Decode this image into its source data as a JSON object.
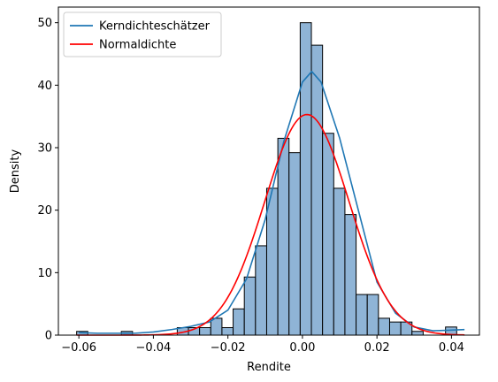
{
  "chart_data": {
    "type": "bar",
    "xlabel": "Rendite",
    "ylabel": "Density",
    "xlim": [
      -0.0655,
      0.0475
    ],
    "ylim": [
      0,
      52.5
    ],
    "xticks": [
      -0.06,
      -0.04,
      -0.02,
      0.0,
      0.02,
      0.04
    ],
    "xtick_labels": [
      "−0.06",
      "−0.04",
      "−0.02",
      "0.00",
      "0.02",
      "0.04"
    ],
    "yticks": [
      0,
      10,
      20,
      30,
      40,
      50
    ],
    "ytick_labels": [
      "0",
      "10",
      "20",
      "30",
      "40",
      "50"
    ],
    "grid": false,
    "legend": {
      "placement": "top-left",
      "entries": [
        {
          "label": "Kerndichteschätzer",
          "color": "#1f77b4"
        },
        {
          "label": "Normaldichte",
          "color": "#ff0000"
        }
      ]
    },
    "histogram": {
      "bin_start": -0.0606,
      "bin_width": 0.003,
      "fill_color": "#8fb4d6",
      "edge_color": "#000000",
      "values": [
        0.6,
        0,
        0,
        0,
        0.6,
        0,
        0,
        0,
        0,
        1.2,
        1.2,
        1.2,
        2.7,
        1.2,
        4.2,
        9.3,
        14.3,
        23.5,
        31.5,
        29.2,
        50.0,
        46.4,
        32.3,
        23.5,
        19.3,
        6.5,
        6.5,
        2.7,
        2.1,
        2.1,
        0.6,
        0,
        0,
        1.3
      ]
    },
    "series": [
      {
        "name": "Kerndichteschätzer",
        "color": "#1f77b4",
        "x": [
          -0.06,
          -0.055,
          -0.05,
          -0.045,
          -0.04,
          -0.035,
          -0.03,
          -0.025,
          -0.02,
          -0.015,
          -0.01,
          -0.005,
          0.0,
          0.0025,
          0.005,
          0.01,
          0.015,
          0.02,
          0.025,
          0.03,
          0.035,
          0.04,
          0.0435
        ],
        "y": [
          0.4,
          0.3,
          0.3,
          0.3,
          0.5,
          0.9,
          1.4,
          2.1,
          4.0,
          9.0,
          18.5,
          31.0,
          40.5,
          42.2,
          40.5,
          31.5,
          20.0,
          8.5,
          3.5,
          1.3,
          0.7,
          0.8,
          0.9
        ]
      },
      {
        "name": "Normaldichte",
        "color": "#ff0000",
        "mean": 0.0012,
        "sd": 0.0113,
        "x_range": [
          -0.0606,
          0.0435
        ]
      }
    ]
  }
}
